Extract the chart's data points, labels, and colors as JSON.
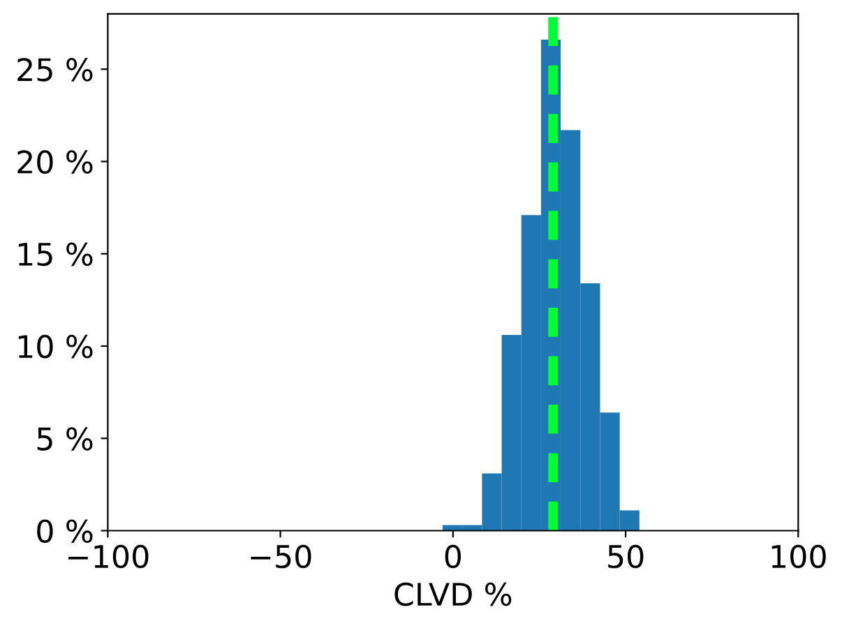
{
  "chart_data": {
    "type": "histogram",
    "xlabel": "CLVD %",
    "bins": [
      -3.0,
      2.7,
      8.4,
      14.1,
      19.8,
      25.5,
      31.2,
      36.9,
      42.6,
      48.3,
      54.0
    ],
    "values": [
      0.3,
      0.3,
      3.1,
      10.6,
      17.1,
      26.6,
      21.7,
      13.4,
      6.4,
      1.1
    ],
    "color": "#1f77b4",
    "xlim": [
      -100,
      100
    ],
    "xticks": [
      {
        "value": -100,
        "label": "−100"
      },
      {
        "value": -50,
        "label": "−50"
      },
      0,
      50,
      100
    ],
    "ylim": [
      0,
      28
    ],
    "yticks": [
      {
        "value": 0,
        "label": "0 %"
      },
      {
        "value": 5,
        "label": "5 %"
      },
      {
        "value": 10,
        "label": "10 %"
      },
      {
        "value": 15,
        "label": "15 %"
      },
      {
        "value": 20,
        "label": "20 %"
      },
      {
        "value": 25,
        "label": "25 %"
      }
    ],
    "ref_lines": [
      {
        "axis": "x",
        "value": 29.0,
        "color": "#00ff33",
        "line_style": "dashed"
      }
    ],
    "grid": false
  }
}
